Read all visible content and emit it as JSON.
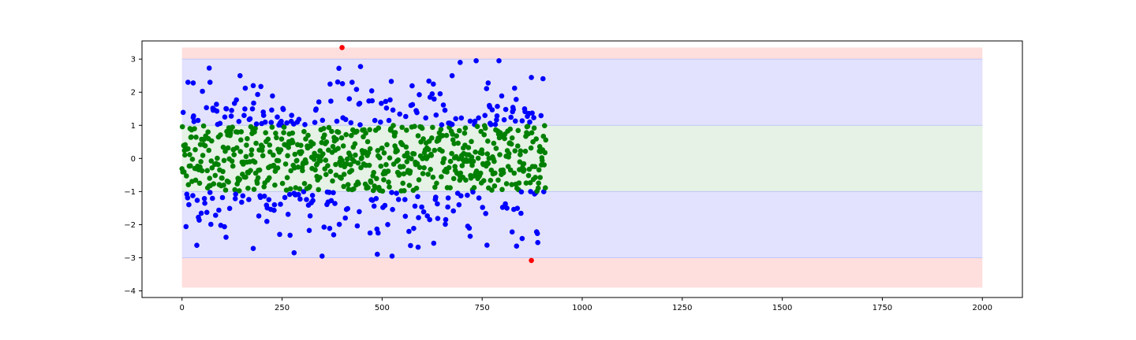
{
  "chart_data": {
    "type": "scatter",
    "title": "",
    "xlabel": "",
    "ylabel": "",
    "xlim": [
      -100,
      2100
    ],
    "ylim": [
      -4.2,
      3.55
    ],
    "x_ticks": [
      0,
      250,
      500,
      750,
      1000,
      1250,
      1500,
      1750,
      2000
    ],
    "x_tick_labels": [
      "0",
      "250",
      "500",
      "750",
      "1000",
      "1250",
      "1500",
      "1750",
      "2000"
    ],
    "y_ticks": [
      3,
      2,
      1,
      0,
      -1,
      -2,
      -3,
      -4
    ],
    "y_tick_labels": [
      "3",
      "2",
      "1",
      "0",
      "−1",
      "−2",
      "−3",
      "−4"
    ],
    "grid": false,
    "bands": [
      {
        "x0": 0,
        "x1": 2000,
        "y0": -3.9,
        "y1": 3.35,
        "color": "#ffdede"
      },
      {
        "x0": 0,
        "x1": 2000,
        "y0": -3,
        "y1": 3,
        "color": "#e2e2fe"
      },
      {
        "x0": 0,
        "x1": 2000,
        "y0": -1,
        "y1": 1,
        "color": "#e5f2e5"
      }
    ],
    "band_edges": {
      "values": [
        3,
        1,
        -1,
        -3
      ],
      "color": "#bfc7f2"
    },
    "point_colors": {
      "within_1": "#008000",
      "within_3": "#0000ff",
      "beyond_3": "#ff0000"
    },
    "n_points": 910,
    "outliers": [
      {
        "x": 400,
        "y": 3.35
      },
      {
        "x": 873,
        "y": -3.08
      }
    ],
    "notable_points": [
      {
        "x": 68,
        "y": 2.73
      },
      {
        "x": 15,
        "y": 2.3
      },
      {
        "x": 28,
        "y": 2.28
      },
      {
        "x": 70,
        "y": 2.3
      },
      {
        "x": 178,
        "y": 2.2
      },
      {
        "x": 425,
        "y": 2.3
      },
      {
        "x": 695,
        "y": 2.9
      },
      {
        "x": 792,
        "y": 2.95
      },
      {
        "x": 675,
        "y": 2.5
      },
      {
        "x": 765,
        "y": 2.28
      },
      {
        "x": 280,
        "y": -2.85
      },
      {
        "x": 178,
        "y": -2.72
      },
      {
        "x": 590,
        "y": -2.68
      },
      {
        "x": 762,
        "y": -2.62
      },
      {
        "x": 850,
        "y": -2.42
      },
      {
        "x": 270,
        "y": -2.32
      },
      {
        "x": 110,
        "y": -2.38
      },
      {
        "x": 470,
        "y": -2.25
      },
      {
        "x": 490,
        "y": -2.25
      },
      {
        "x": 720,
        "y": -2.35
      },
      {
        "x": 825,
        "y": -2.22
      }
    ]
  }
}
